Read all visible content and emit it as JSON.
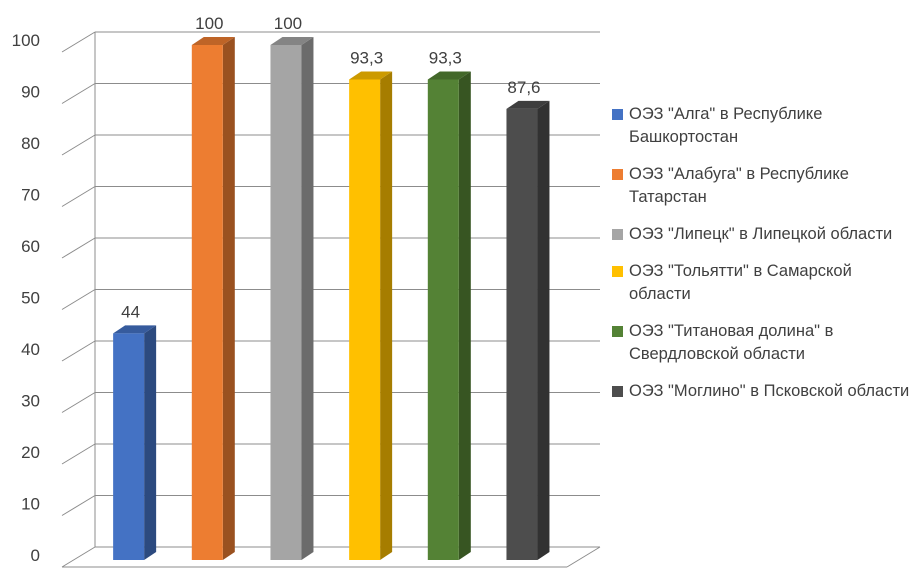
{
  "chart_data": {
    "type": "bar",
    "title": "",
    "xlabel": "",
    "ylabel": "",
    "ylim": [
      0,
      100
    ],
    "yticks": [
      0,
      10,
      20,
      30,
      40,
      50,
      60,
      70,
      80,
      90,
      100
    ],
    "grid": true,
    "legend_position": "right",
    "categories": [
      "ОЭЗ \"Алга\" в Республике Башкортостан",
      "ОЭЗ \"Алабуга\" в Республике Татарстан",
      "ОЭЗ \"Липецк\" в Липецкой области",
      "ОЭЗ \"Тольятти\" в Самарской области",
      "ОЭЗ \"Титановая долина\" в Свердловской области",
      "ОЭЗ \"Моглино\" в Псковской области"
    ],
    "values": [
      44,
      100,
      100,
      93.3,
      93.3,
      87.6
    ],
    "value_labels": [
      "44",
      "100",
      "100",
      "93,3",
      "93,3",
      "87,6"
    ],
    "colors": [
      "#4472C4",
      "#ED7D31",
      "#A5A5A5",
      "#FFC000",
      "#548235",
      "#4D4D4D"
    ]
  }
}
